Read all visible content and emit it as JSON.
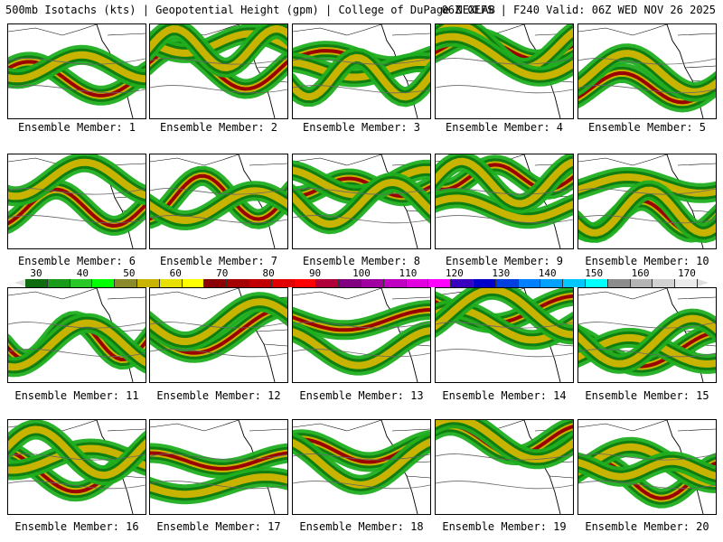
{
  "header": {
    "title_left": "500mb Isotachs (kts) | Geopotential Height (gpm) | College of DuPage NEXLAB",
    "title_right": "06Z GEFS | F240 Valid: 06Z WED NOV 26 2025"
  },
  "member_label_prefix": "Ensemble Member: ",
  "members": [
    1,
    2,
    3,
    4,
    5,
    6,
    7,
    8,
    9,
    10,
    11,
    12,
    13,
    14,
    15,
    16,
    17,
    18,
    19,
    20
  ],
  "colorbar": {
    "ticks": [
      "30",
      "40",
      "50",
      "60",
      "70",
      "80",
      "90",
      "100",
      "110",
      "120",
      "130",
      "140",
      "150",
      "160",
      "170"
    ],
    "colors": [
      "#0f6b0f",
      "#1a9a1a",
      "#28c828",
      "#00ff00",
      "#8a8a2a",
      "#c8b400",
      "#e8e000",
      "#ffff00",
      "#8b0000",
      "#a40000",
      "#c00000",
      "#e00000",
      "#ff0000",
      "#b0003a",
      "#800080",
      "#a000a0",
      "#c000c0",
      "#e000e0",
      "#ff00ff",
      "#3a00c0",
      "#0000c8",
      "#0040e0",
      "#0080ff",
      "#00a0ff",
      "#00c8ff",
      "#00ffff",
      "#8c8c8c",
      "#b4b4b4",
      "#d2d2d2",
      "#ececec"
    ]
  }
}
